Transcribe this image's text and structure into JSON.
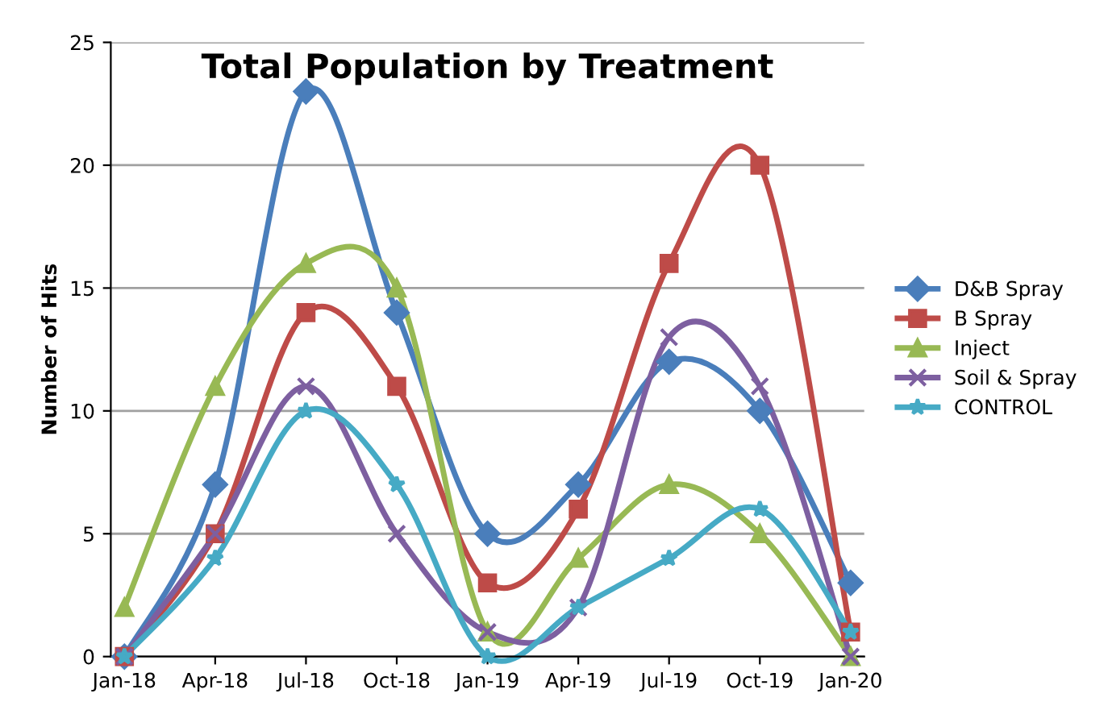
{
  "chart_data": {
    "type": "line",
    "title": "Total Population by Treatment",
    "ylabel": "Number of Hits",
    "categories": [
      "Jan-18",
      "Apr-18",
      "Jul-18",
      "Oct-18",
      "Jan-19",
      "Apr-19",
      "Jul-19",
      "Oct-19",
      "Jan-20"
    ],
    "series": [
      {
        "name": "D&B Spray",
        "color": "#4a7ebb",
        "marker": "diamond",
        "values": [
          0,
          7,
          23,
          14,
          5,
          7,
          12,
          10,
          3
        ]
      },
      {
        "name": "B Spray",
        "color": "#be4b48",
        "marker": "square",
        "values": [
          0,
          5,
          14,
          11,
          3,
          6,
          16,
          20,
          1
        ]
      },
      {
        "name": "Inject",
        "color": "#98b954",
        "marker": "triangle",
        "values": [
          2,
          11,
          16,
          15,
          1,
          4,
          7,
          5,
          0
        ]
      },
      {
        "name": "Soil & Spray",
        "color": "#7d5fa0",
        "marker": "cross",
        "values": [
          0,
          5,
          11,
          5,
          1,
          2,
          13,
          11,
          0
        ]
      },
      {
        "name": "CONTROL",
        "color": "#46aac5",
        "marker": "star",
        "values": [
          0,
          4,
          10,
          7,
          0,
          2,
          4,
          6,
          1
        ]
      }
    ],
    "ylim": [
      0,
      25
    ],
    "yticks": [
      0,
      5,
      10,
      15,
      20,
      25
    ],
    "grid": "y",
    "legend": "right",
    "line_style": "solid"
  }
}
